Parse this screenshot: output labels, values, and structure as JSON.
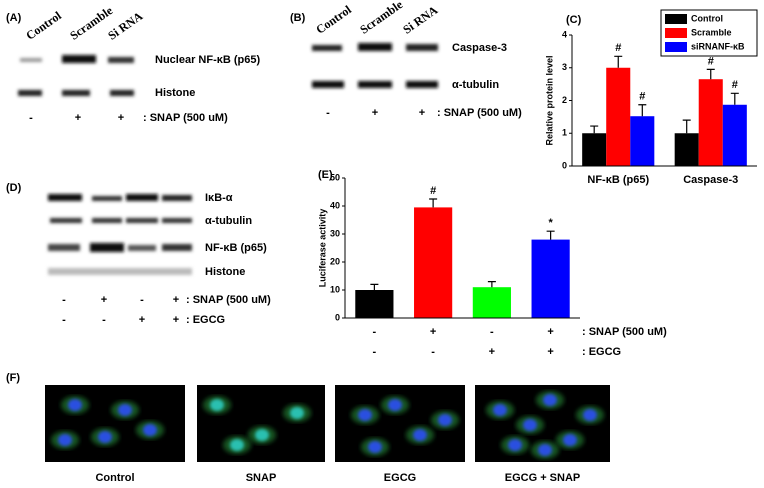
{
  "panels": {
    "A": {
      "label": "(A)",
      "columns": [
        "Control",
        "Scramble",
        "Si RNA"
      ],
      "rows": [
        "Nuclear NF-κB (p65)",
        "Histone"
      ],
      "signs": [
        "-",
        "+",
        "+"
      ],
      "treatment": ": SNAP (500 uM)"
    },
    "B": {
      "label": "(B)",
      "columns": [
        "Control",
        "Scramble",
        "Si RNA"
      ],
      "rows": [
        "Caspase-3",
        "α-tubulin"
      ],
      "signs": [
        "-",
        "+",
        "+"
      ],
      "treatment": ": SNAP (500 uM)"
    },
    "D": {
      "label": "(D)",
      "rows": [
        "IκB-α",
        "α-tubulin",
        "NF-κB  (p65)",
        "Histone"
      ],
      "treatments": [
        {
          "signs": [
            "-",
            "+",
            "-",
            "+"
          ],
          "label": ": SNAP (500 uM)"
        },
        {
          "signs": [
            "-",
            "-",
            "+",
            "+"
          ],
          "label": ": EGCG"
        }
      ]
    },
    "F": {
      "label": "(F)",
      "captions": [
        "Control",
        "SNAP",
        "EGCG",
        "EGCG + SNAP"
      ]
    }
  },
  "chart_data": [
    {
      "type": "grouped-bar",
      "panel_label": "(C)",
      "y_label": "Relative protein level",
      "categories": [
        "NF-κB (p65)",
        "Caspase-3"
      ],
      "ylim": [
        0,
        4
      ],
      "yticks": [
        0,
        1,
        2,
        3,
        4
      ],
      "legend": "top-right",
      "series": [
        {
          "name": "Control",
          "color": "#000000",
          "values": [
            1.0,
            1.0
          ],
          "errors": [
            0.22,
            0.4
          ]
        },
        {
          "name": "Scramble",
          "color": "#ff0000",
          "values": [
            3.0,
            2.65
          ],
          "errors": [
            0.35,
            0.3
          ],
          "marks": [
            "#",
            "#"
          ]
        },
        {
          "name": "siRNANF-κB",
          "color": "#0000ff",
          "values": [
            1.52,
            1.87
          ],
          "errors": [
            0.35,
            0.35
          ],
          "marks": [
            "#",
            "#"
          ]
        }
      ]
    },
    {
      "type": "bar",
      "panel_label": "(E)",
      "y_label": "Luciferase activity",
      "categories": [
        null,
        null,
        null,
        null
      ],
      "values": [
        10,
        39.5,
        11,
        28
      ],
      "errors": [
        2,
        3,
        2,
        3
      ],
      "colors": [
        "#000000",
        "#ff0000",
        "#00ff00",
        "#0000ff"
      ],
      "marks": [
        null,
        "#",
        null,
        "*"
      ],
      "ylim": [
        0,
        50
      ],
      "yticks": [
        0,
        10,
        20,
        30,
        40,
        50
      ],
      "conditions": [
        {
          "signs": [
            "-",
            "+",
            "-",
            "+"
          ],
          "label": ": SNAP (500 uM)"
        },
        {
          "signs": [
            "-",
            "-",
            "+",
            "+"
          ],
          "label": ": EGCG"
        }
      ]
    }
  ]
}
